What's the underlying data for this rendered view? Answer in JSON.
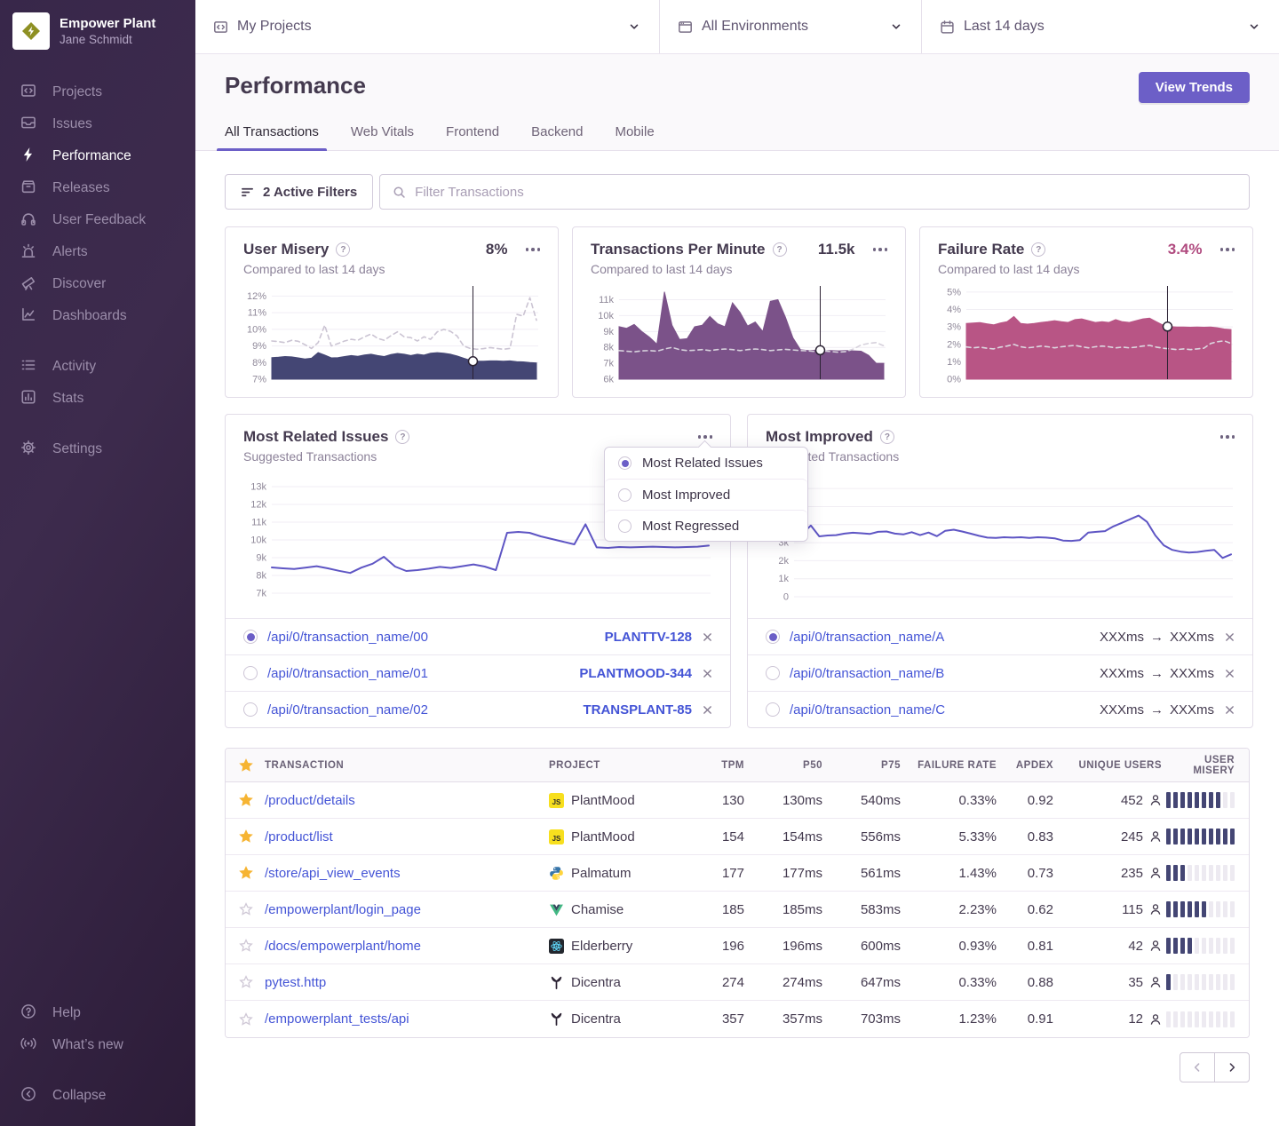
{
  "sidebar": {
    "org_name": "Empower Plant",
    "user_name": "Jane Schmidt",
    "items": [
      "Projects",
      "Issues",
      "Performance",
      "Releases",
      "User Feedback",
      "Alerts",
      "Discover",
      "Dashboards"
    ],
    "secondary_items": [
      "Activity",
      "Stats"
    ],
    "settings_label": "Settings",
    "help_label": "Help",
    "whats_new_label": "What’s new",
    "collapse_label": "Collapse"
  },
  "topbar": {
    "project_filter": "My Projects",
    "environment_filter": "All Environments",
    "date_filter": "Last 14 days"
  },
  "header": {
    "title": "Performance",
    "view_trends_label": "View Trends",
    "tabs": [
      "All Transactions",
      "Web Vitals",
      "Frontend",
      "Backend",
      "Mobile"
    ],
    "active_tab": "All Transactions"
  },
  "filters": {
    "active_filters_label": "2 Active Filters",
    "search_placeholder": "Filter Transactions"
  },
  "metric_cards": {
    "user_misery": {
      "title": "User Misery",
      "value": "8%",
      "subtitle": "Compared to last 14 days"
    },
    "tpm": {
      "title": "Transactions Per Minute",
      "value": "11.5k",
      "subtitle": "Compared to last 14 days"
    },
    "failure_rate": {
      "title": "Failure Rate",
      "value": "3.4%",
      "subtitle": "Compared to last 14 days"
    }
  },
  "related_panel": {
    "title": "Most Related Issues",
    "subtitle": "Suggested Transactions",
    "rows": [
      {
        "transaction": "/api/0/transaction_name/00",
        "issue": "PLANTTV-128",
        "selected": true
      },
      {
        "transaction": "/api/0/transaction_name/01",
        "issue": "PLANTMOOD-344",
        "selected": false
      },
      {
        "transaction": "/api/0/transaction_name/02",
        "issue": "TRANSPLANT-85",
        "selected": false
      }
    ]
  },
  "improved_panel": {
    "title": "Most Improved",
    "subtitle": "Suggested Transactions",
    "rows": [
      {
        "transaction": "/api/0/transaction_name/A",
        "before": "XXXms",
        "after": "XXXms",
        "selected": true
      },
      {
        "transaction": "/api/0/transaction_name/B",
        "before": "XXXms",
        "after": "XXXms",
        "selected": false
      },
      {
        "transaction": "/api/0/transaction_name/C",
        "before": "XXXms",
        "after": "XXXms",
        "selected": false
      }
    ]
  },
  "context_menu": {
    "options": [
      {
        "label": "Most Related Issues",
        "selected": true
      },
      {
        "label": "Most Improved",
        "selected": false
      },
      {
        "label": "Most Regressed",
        "selected": false
      }
    ]
  },
  "table": {
    "columns": [
      "TRANSACTION",
      "PROJECT",
      "TPM",
      "P50",
      "P75",
      "FAILURE RATE",
      "APDEX",
      "UNIQUE USERS",
      "USER MISERY"
    ],
    "rows": [
      {
        "starred": true,
        "transaction": "/product/details",
        "platform": "js",
        "project": "PlantMood",
        "tpm": "130",
        "p50": "130ms",
        "p75": "540ms",
        "failure_rate": "0.33%",
        "apdex": "0.92",
        "users": "452",
        "misery": 8
      },
      {
        "starred": true,
        "transaction": "/product/list",
        "platform": "js",
        "project": "PlantMood",
        "tpm": "154",
        "p50": "154ms",
        "p75": "556ms",
        "failure_rate": "5.33%",
        "apdex": "0.83",
        "users": "245",
        "misery": 10
      },
      {
        "starred": true,
        "transaction": "/store/api_view_events",
        "platform": "python",
        "project": "Palmatum",
        "tpm": "177",
        "p50": "177ms",
        "p75": "561ms",
        "failure_rate": "1.43%",
        "apdex": "0.73",
        "users": "235",
        "misery": 3
      },
      {
        "starred": false,
        "transaction": "/empowerplant/login_page",
        "platform": "vue",
        "project": "Chamise",
        "tpm": "185",
        "p50": "185ms",
        "p75": "583ms",
        "failure_rate": "2.23%",
        "apdex": "0.62",
        "users": "115",
        "misery": 6
      },
      {
        "starred": false,
        "transaction": "/docs/empowerplant/home",
        "platform": "react",
        "project": "Elderberry",
        "tpm": "196",
        "p50": "196ms",
        "p75": "600ms",
        "failure_rate": "0.93%",
        "apdex": "0.81",
        "users": "42",
        "misery": 4
      },
      {
        "starred": false,
        "transaction": "pytest.http",
        "platform": "flask",
        "project": "Dicentra",
        "tpm": "274",
        "p50": "274ms",
        "p75": "647ms",
        "failure_rate": "0.33%",
        "apdex": "0.88",
        "users": "35",
        "misery": 1
      },
      {
        "starred": false,
        "transaction": "/empowerplant_tests/api",
        "platform": "flask",
        "project": "Dicentra",
        "tpm": "357",
        "p50": "357ms",
        "p75": "703ms",
        "failure_rate": "1.23%",
        "apdex": "0.91",
        "users": "12",
        "misery": 0
      }
    ]
  },
  "colors": {
    "accent": "#6c5fc7",
    "link": "#4454d6",
    "user_misery_area": "#444674",
    "tpm_area": "#7b5289",
    "failure_area": "#b85585",
    "trend_line": "#5e55c4",
    "previous_period_dash": "#cbc4d3",
    "star": "#f6b433"
  },
  "chart_data": [
    {
      "id": "user_misery",
      "type": "area",
      "title": "User Misery",
      "ylim": [
        7,
        12.45
      ],
      "grid": true,
      "x_unit": "days (last 14, vs previous 14)",
      "yticks": [
        {
          "value": 12,
          "label": "12%"
        },
        {
          "value": 11,
          "label": "11%"
        },
        {
          "value": 10,
          "label": "10%"
        },
        {
          "value": 9,
          "label": "9%"
        },
        {
          "value": 8,
          "label": "8%"
        },
        {
          "value": 7,
          "label": "7%"
        }
      ],
      "series": [
        {
          "name": "current",
          "style": "area",
          "color": "#444674",
          "values": [
            8.3,
            8.32,
            8.36,
            8.34,
            8.28,
            8.22,
            8.26,
            8.6,
            8.45,
            8.28,
            8.3,
            8.36,
            8.42,
            8.38,
            8.46,
            8.5,
            8.42,
            8.36,
            8.48,
            8.55,
            8.5,
            8.42,
            8.5,
            8.45,
            8.56,
            8.6,
            8.56,
            8.5,
            8.4,
            8.26,
            8.14,
            8.08,
            8.08,
            8.1,
            8.1,
            8.08,
            8.1,
            8.06,
            8.04,
            8.0,
            7.98
          ]
        },
        {
          "name": "previous period",
          "style": "dashed",
          "color": "#cbc4d3",
          "values": [
            9.3,
            9.26,
            9.2,
            9.34,
            9.28,
            9.08,
            8.85,
            9.2,
            10.25,
            9.0,
            9.14,
            9.3,
            9.4,
            9.34,
            9.55,
            9.72,
            9.45,
            9.34,
            9.62,
            9.85,
            9.55,
            9.5,
            9.3,
            9.55,
            9.4,
            9.85,
            10.0,
            9.88,
            9.6,
            9.0,
            8.85,
            8.8,
            8.84,
            8.9,
            8.85,
            8.8,
            8.85,
            10.9,
            10.8,
            11.9,
            10.55
          ]
        }
      ],
      "marker": {
        "x_frac": 0.76,
        "value": 8.08
      }
    },
    {
      "id": "tpm",
      "type": "area",
      "title": "Transactions Per Minute",
      "ylim": [
        6,
        11.7
      ],
      "grid": true,
      "value_unit": "k",
      "yticks": [
        {
          "value": 11,
          "label": "11k"
        },
        {
          "value": 10,
          "label": "10k"
        },
        {
          "value": 9,
          "label": "9k"
        },
        {
          "value": 8,
          "label": "8k"
        },
        {
          "value": 7,
          "label": "7k"
        },
        {
          "value": 6,
          "label": "6k"
        }
      ],
      "series": [
        {
          "name": "current",
          "style": "area",
          "color": "#7b5289",
          "values": [
            9.3,
            9.2,
            9.45,
            9.0,
            8.65,
            8.2,
            11.5,
            9.4,
            8.5,
            8.55,
            9.3,
            9.4,
            9.95,
            9.5,
            9.3,
            10.8,
            10.2,
            9.35,
            9.6,
            9.0,
            10.9,
            11.0,
            9.9,
            8.6,
            7.85,
            7.8,
            7.82,
            7.78,
            7.8,
            7.78,
            7.8,
            7.78,
            7.76,
            7.5,
            7.0,
            7.0
          ]
        },
        {
          "name": "previous period",
          "style": "dashed",
          "color": "#d6d1dc",
          "values": [
            7.8,
            7.76,
            7.72,
            7.78,
            7.8,
            7.76,
            7.9,
            8.0,
            7.86,
            7.8,
            7.82,
            7.86,
            7.8,
            7.86,
            7.9,
            7.86,
            7.8,
            7.86,
            7.9,
            7.86,
            7.8,
            7.84,
            7.88,
            7.84,
            7.8,
            7.78,
            7.74,
            7.78,
            7.74,
            7.7,
            7.74,
            7.9,
            8.15,
            8.25,
            8.3,
            8.1
          ]
        }
      ],
      "marker": {
        "x_frac": 0.76,
        "value": 7.82
      }
    },
    {
      "id": "failure_rate",
      "type": "area",
      "title": "Failure Rate",
      "ylim": [
        0,
        5.2
      ],
      "grid": true,
      "yticks": [
        {
          "value": 5,
          "label": "5%"
        },
        {
          "value": 4,
          "label": "4%"
        },
        {
          "value": 3,
          "label": "3%"
        },
        {
          "value": 2,
          "label": "2%"
        },
        {
          "value": 1,
          "label": "1%"
        },
        {
          "value": 0,
          "label": "0%"
        }
      ],
      "series": [
        {
          "name": "current",
          "style": "area",
          "color": "#b85585",
          "values": [
            3.2,
            3.22,
            3.25,
            3.18,
            3.12,
            3.22,
            3.3,
            3.6,
            3.2,
            3.16,
            3.2,
            3.26,
            3.3,
            3.36,
            3.3,
            3.26,
            3.42,
            3.46,
            3.36,
            3.26,
            3.3,
            3.26,
            3.42,
            3.3,
            3.26,
            3.36,
            3.46,
            3.5,
            3.3,
            3.1,
            3.02,
            3.0,
            3.0,
            2.98,
            3.0,
            2.98,
            3.0,
            2.95,
            2.88,
            2.85
          ]
        },
        {
          "name": "previous period",
          "style": "dashed",
          "color": "#dcd7e0",
          "values": [
            1.85,
            1.8,
            1.84,
            1.78,
            1.74,
            1.84,
            1.9,
            2.0,
            1.86,
            1.8,
            1.84,
            1.9,
            1.86,
            1.8,
            1.86,
            1.9,
            1.94,
            1.86,
            1.8,
            1.86,
            1.9,
            1.86,
            1.8,
            1.84,
            1.8,
            1.84,
            1.9,
            1.94,
            1.84,
            1.78,
            1.74,
            1.7,
            1.74,
            1.7,
            1.74,
            1.78,
            2.05,
            2.15,
            2.2,
            2.05
          ]
        }
      ],
      "marker": {
        "x_frac": 0.76,
        "value": 3.02
      }
    },
    {
      "id": "most_related",
      "type": "line",
      "title": "Most Related Issues",
      "ylim": [
        6.8,
        13.5
      ],
      "grid": true,
      "value_unit": "k",
      "yticks": [
        {
          "value": 13,
          "label": "13k"
        },
        {
          "value": 12,
          "label": "12k"
        },
        {
          "value": 11,
          "label": "11k"
        },
        {
          "value": 10,
          "label": "10k"
        },
        {
          "value": 9,
          "label": "9k"
        },
        {
          "value": 8,
          "label": "8k"
        },
        {
          "value": 7,
          "label": "7k"
        }
      ],
      "series": [
        {
          "name": "/api/0/transaction_name/00",
          "style": "line",
          "color": "#5e55c4",
          "values": [
            8.45,
            8.4,
            8.36,
            8.44,
            8.52,
            8.4,
            8.26,
            8.14,
            8.44,
            8.66,
            9.05,
            8.5,
            8.25,
            8.3,
            8.38,
            8.48,
            8.42,
            8.52,
            8.62,
            8.5,
            8.3,
            10.4,
            10.45,
            10.4,
            10.2,
            10.05,
            9.9,
            9.75,
            10.88,
            9.58,
            9.55,
            9.6,
            9.58,
            9.6,
            9.62,
            9.6,
            9.58,
            9.6,
            9.62,
            9.68
          ]
        }
      ]
    },
    {
      "id": "most_improved",
      "type": "line",
      "title": "Most Improved",
      "ylim": [
        0,
        6.6
      ],
      "grid": true,
      "value_unit": "k",
      "yticks": [
        {
          "value": 6,
          "label": "6k"
        },
        {
          "value": 5,
          "label": "5k"
        },
        {
          "value": 4,
          "label": "4k"
        },
        {
          "value": 3,
          "label": "3k"
        },
        {
          "value": 2,
          "label": "2k"
        },
        {
          "value": 1,
          "label": "1k"
        },
        {
          "value": 0,
          "label": "0"
        }
      ],
      "series": [
        {
          "name": "/api/0/transaction_name/A",
          "style": "line",
          "color": "#5e55c4",
          "values": [
            3.45,
            3.5,
            3.95,
            3.35,
            3.4,
            3.42,
            3.5,
            3.55,
            3.52,
            3.48,
            3.6,
            3.62,
            3.5,
            3.46,
            3.58,
            3.42,
            3.56,
            3.36,
            3.66,
            3.72,
            3.62,
            3.5,
            3.38,
            3.28,
            3.26,
            3.3,
            3.28,
            3.3,
            3.26,
            3.3,
            3.28,
            3.24,
            3.12,
            3.1,
            3.14,
            3.56,
            3.6,
            3.64,
            3.9,
            4.1,
            4.3,
            4.5,
            4.15,
            3.4,
            2.85,
            2.6,
            2.5,
            2.45,
            2.48,
            2.55,
            2.6,
            2.15,
            2.35
          ]
        }
      ]
    }
  ]
}
